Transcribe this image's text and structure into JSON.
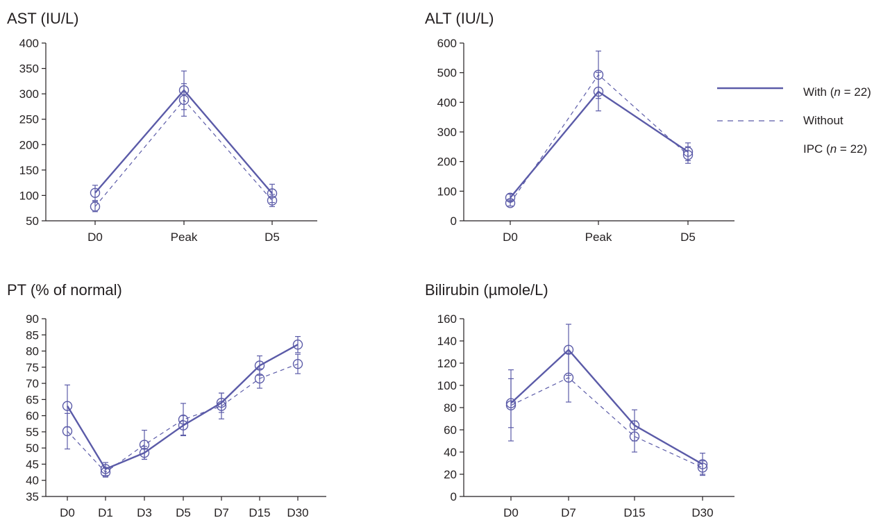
{
  "colors": {
    "series": "#5b5ba8",
    "axis": "#231f20"
  },
  "legend": {
    "solid_label_prefix": "With (",
    "solid_label_n": "n",
    "solid_label_suffix": " = 22)",
    "dashed_label_line1": "Without",
    "dashed_label_prefix": "IPC (",
    "dashed_label_n": "n",
    "dashed_label_suffix": " = 22)"
  },
  "chart_data": [
    {
      "type": "line",
      "title": "AST (IU/L)",
      "categories": [
        "D0",
        "Peak",
        "D5"
      ],
      "ylim": [
        50,
        400
      ],
      "yticks": [
        50,
        100,
        150,
        200,
        250,
        300,
        350,
        400
      ],
      "series": [
        {
          "style": "solid",
          "values": [
            105,
            307,
            104
          ],
          "errors": [
            15,
            38,
            18
          ]
        },
        {
          "style": "dashed",
          "values": [
            78,
            288,
            90
          ],
          "errors": [
            10,
            32,
            12
          ]
        }
      ]
    },
    {
      "type": "line",
      "title": "ALT (IU/L)",
      "categories": [
        "D0",
        "Peak",
        "D5"
      ],
      "ylim": [
        0,
        600
      ],
      "yticks": [
        0,
        100,
        200,
        300,
        400,
        500,
        600
      ],
      "series": [
        {
          "style": "solid",
          "values": [
            78,
            436,
            233
          ],
          "errors": [
            12,
            65,
            30
          ]
        },
        {
          "style": "dashed",
          "values": [
            60,
            493,
            222
          ],
          "errors": [
            10,
            80,
            28
          ]
        }
      ]
    },
    {
      "type": "line",
      "title": "PT (% of normal)",
      "categories": [
        "D0",
        "D1",
        "D3",
        "D5",
        "D7",
        "D15",
        "D30"
      ],
      "ylim": [
        35,
        90
      ],
      "yticks": [
        35,
        40,
        45,
        50,
        55,
        60,
        65,
        70,
        75,
        80,
        85,
        90
      ],
      "series": [
        {
          "style": "solid",
          "values": [
            63,
            43.5,
            48.5,
            57,
            64,
            75.5,
            82
          ],
          "errors": [
            6.5,
            2,
            2,
            3,
            3,
            3,
            2.5
          ]
        },
        {
          "style": "dashed",
          "values": [
            55.2,
            42.5,
            51,
            58.8,
            63,
            71.5,
            76
          ],
          "errors": [
            5.5,
            1.5,
            4.5,
            5,
            4,
            3,
            3
          ]
        }
      ]
    },
    {
      "type": "line",
      "title": "Bilirubin (µmole/L)",
      "categories": [
        "D0",
        "D7",
        "D15",
        "D30"
      ],
      "ylim": [
        0,
        160
      ],
      "yticks": [
        0,
        20,
        40,
        60,
        80,
        100,
        120,
        140,
        160
      ],
      "series": [
        {
          "style": "solid",
          "values": [
            84,
            132,
            64,
            29
          ],
          "errors": [
            22,
            23,
            14,
            10
          ]
        },
        {
          "style": "dashed",
          "values": [
            82,
            107,
            54,
            26
          ],
          "errors": [
            32,
            22,
            14,
            6
          ]
        }
      ]
    }
  ]
}
